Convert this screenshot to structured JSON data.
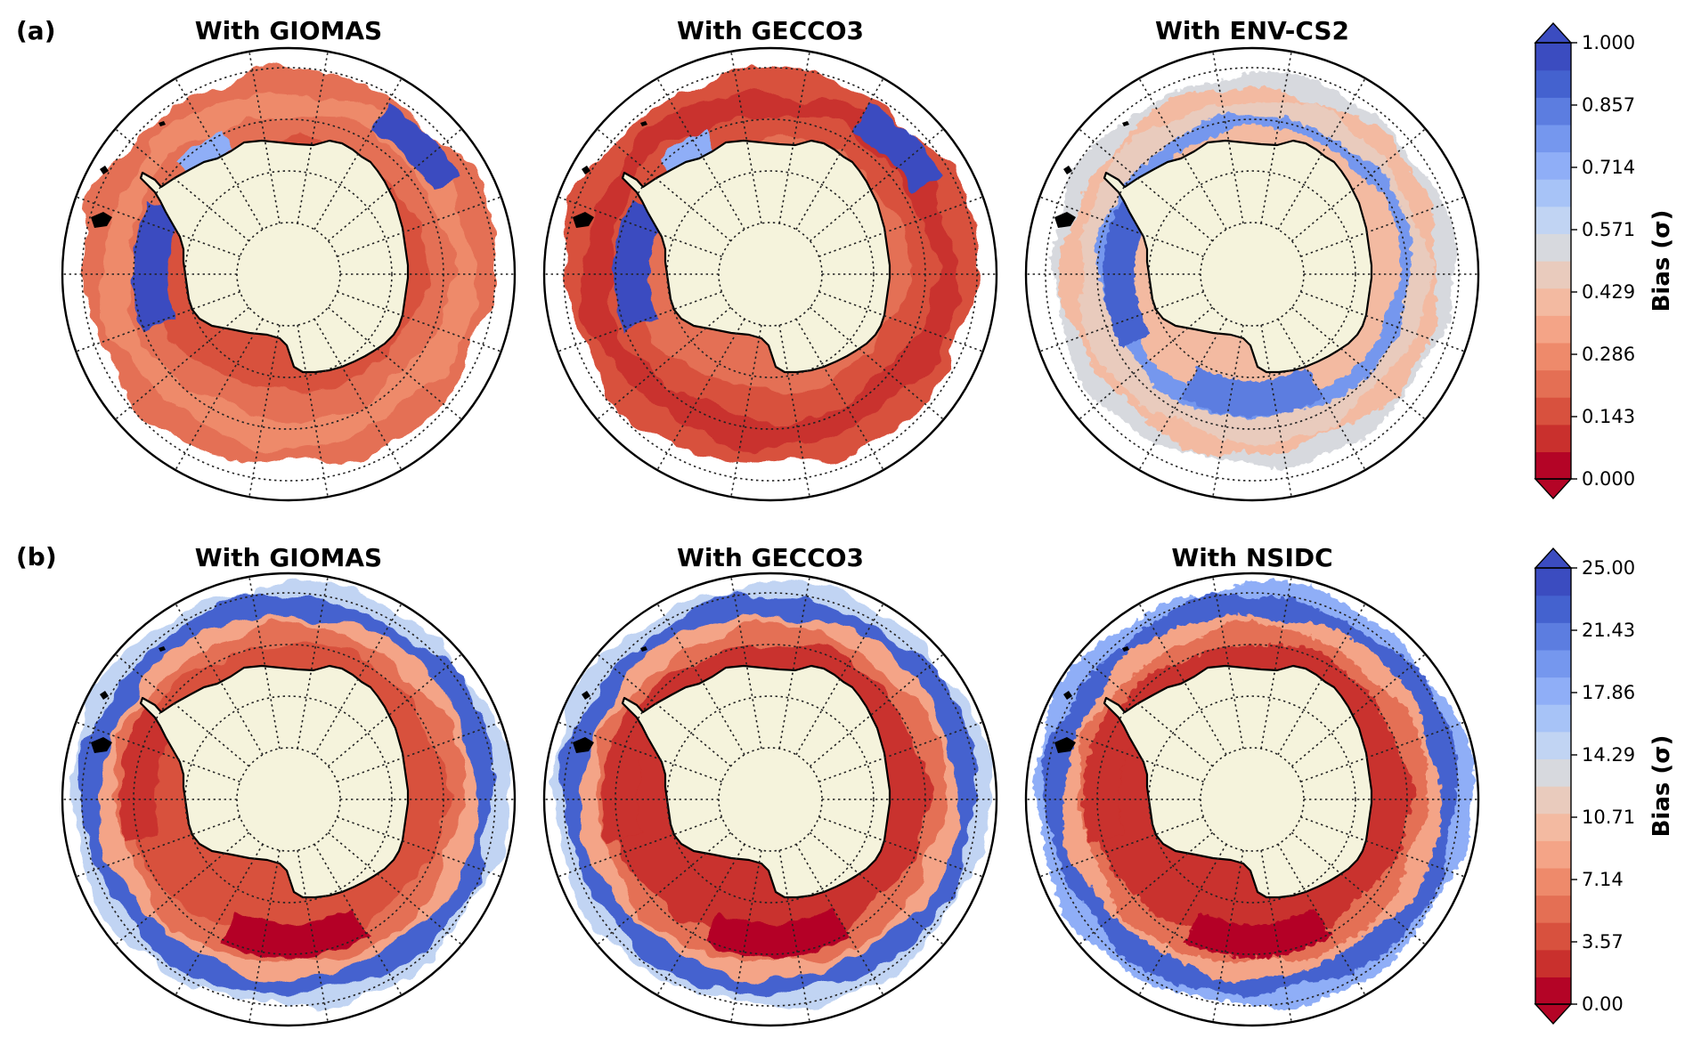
{
  "figure": {
    "rows": [
      {
        "label": "(a)",
        "maps": [
          {
            "title": "With GIOMAS",
            "pattern": "giomas_a"
          },
          {
            "title": "With GECCO3",
            "pattern": "gecco_a"
          },
          {
            "title": "With ENV-CS2",
            "pattern": "envcs2_a"
          }
        ],
        "colorbar": {
          "label": "Bias (σ)",
          "range": [
            0,
            1
          ],
          "ticks": [
            "1.000",
            "0.857",
            "0.714",
            "0.571",
            "0.429",
            "0.286",
            "0.143",
            "0.000"
          ],
          "extend": "both"
        }
      },
      {
        "label": "(b)",
        "maps": [
          {
            "title": "With GIOMAS",
            "pattern": "giomas_b"
          },
          {
            "title": "With GECCO3",
            "pattern": "gecco_b"
          },
          {
            "title": "With NSIDC",
            "pattern": "nsidc_b"
          }
        ],
        "colorbar": {
          "label": "Bias (σ)",
          "range": [
            0,
            25
          ],
          "ticks": [
            "25.00",
            "21.43",
            "17.86",
            "14.29",
            "10.71",
            "7.14",
            "3.57",
            "0.00"
          ],
          "extend": "both"
        }
      }
    ],
    "colors": {
      "land": "#f5f3dc",
      "coast": "#000000",
      "grid": "#222222",
      "colormap": [
        "#b40426",
        "#c9302d",
        "#d8513e",
        "#e46f54",
        "#ee8a6b",
        "#f4a487",
        "#f3baa1",
        "#e9cbbd",
        "#d7d9de",
        "#c1d4f3",
        "#a7c3f7",
        "#8faef7",
        "#7597ee",
        "#5c7de0",
        "#4462cf",
        "#3b4cc0"
      ]
    }
  }
}
